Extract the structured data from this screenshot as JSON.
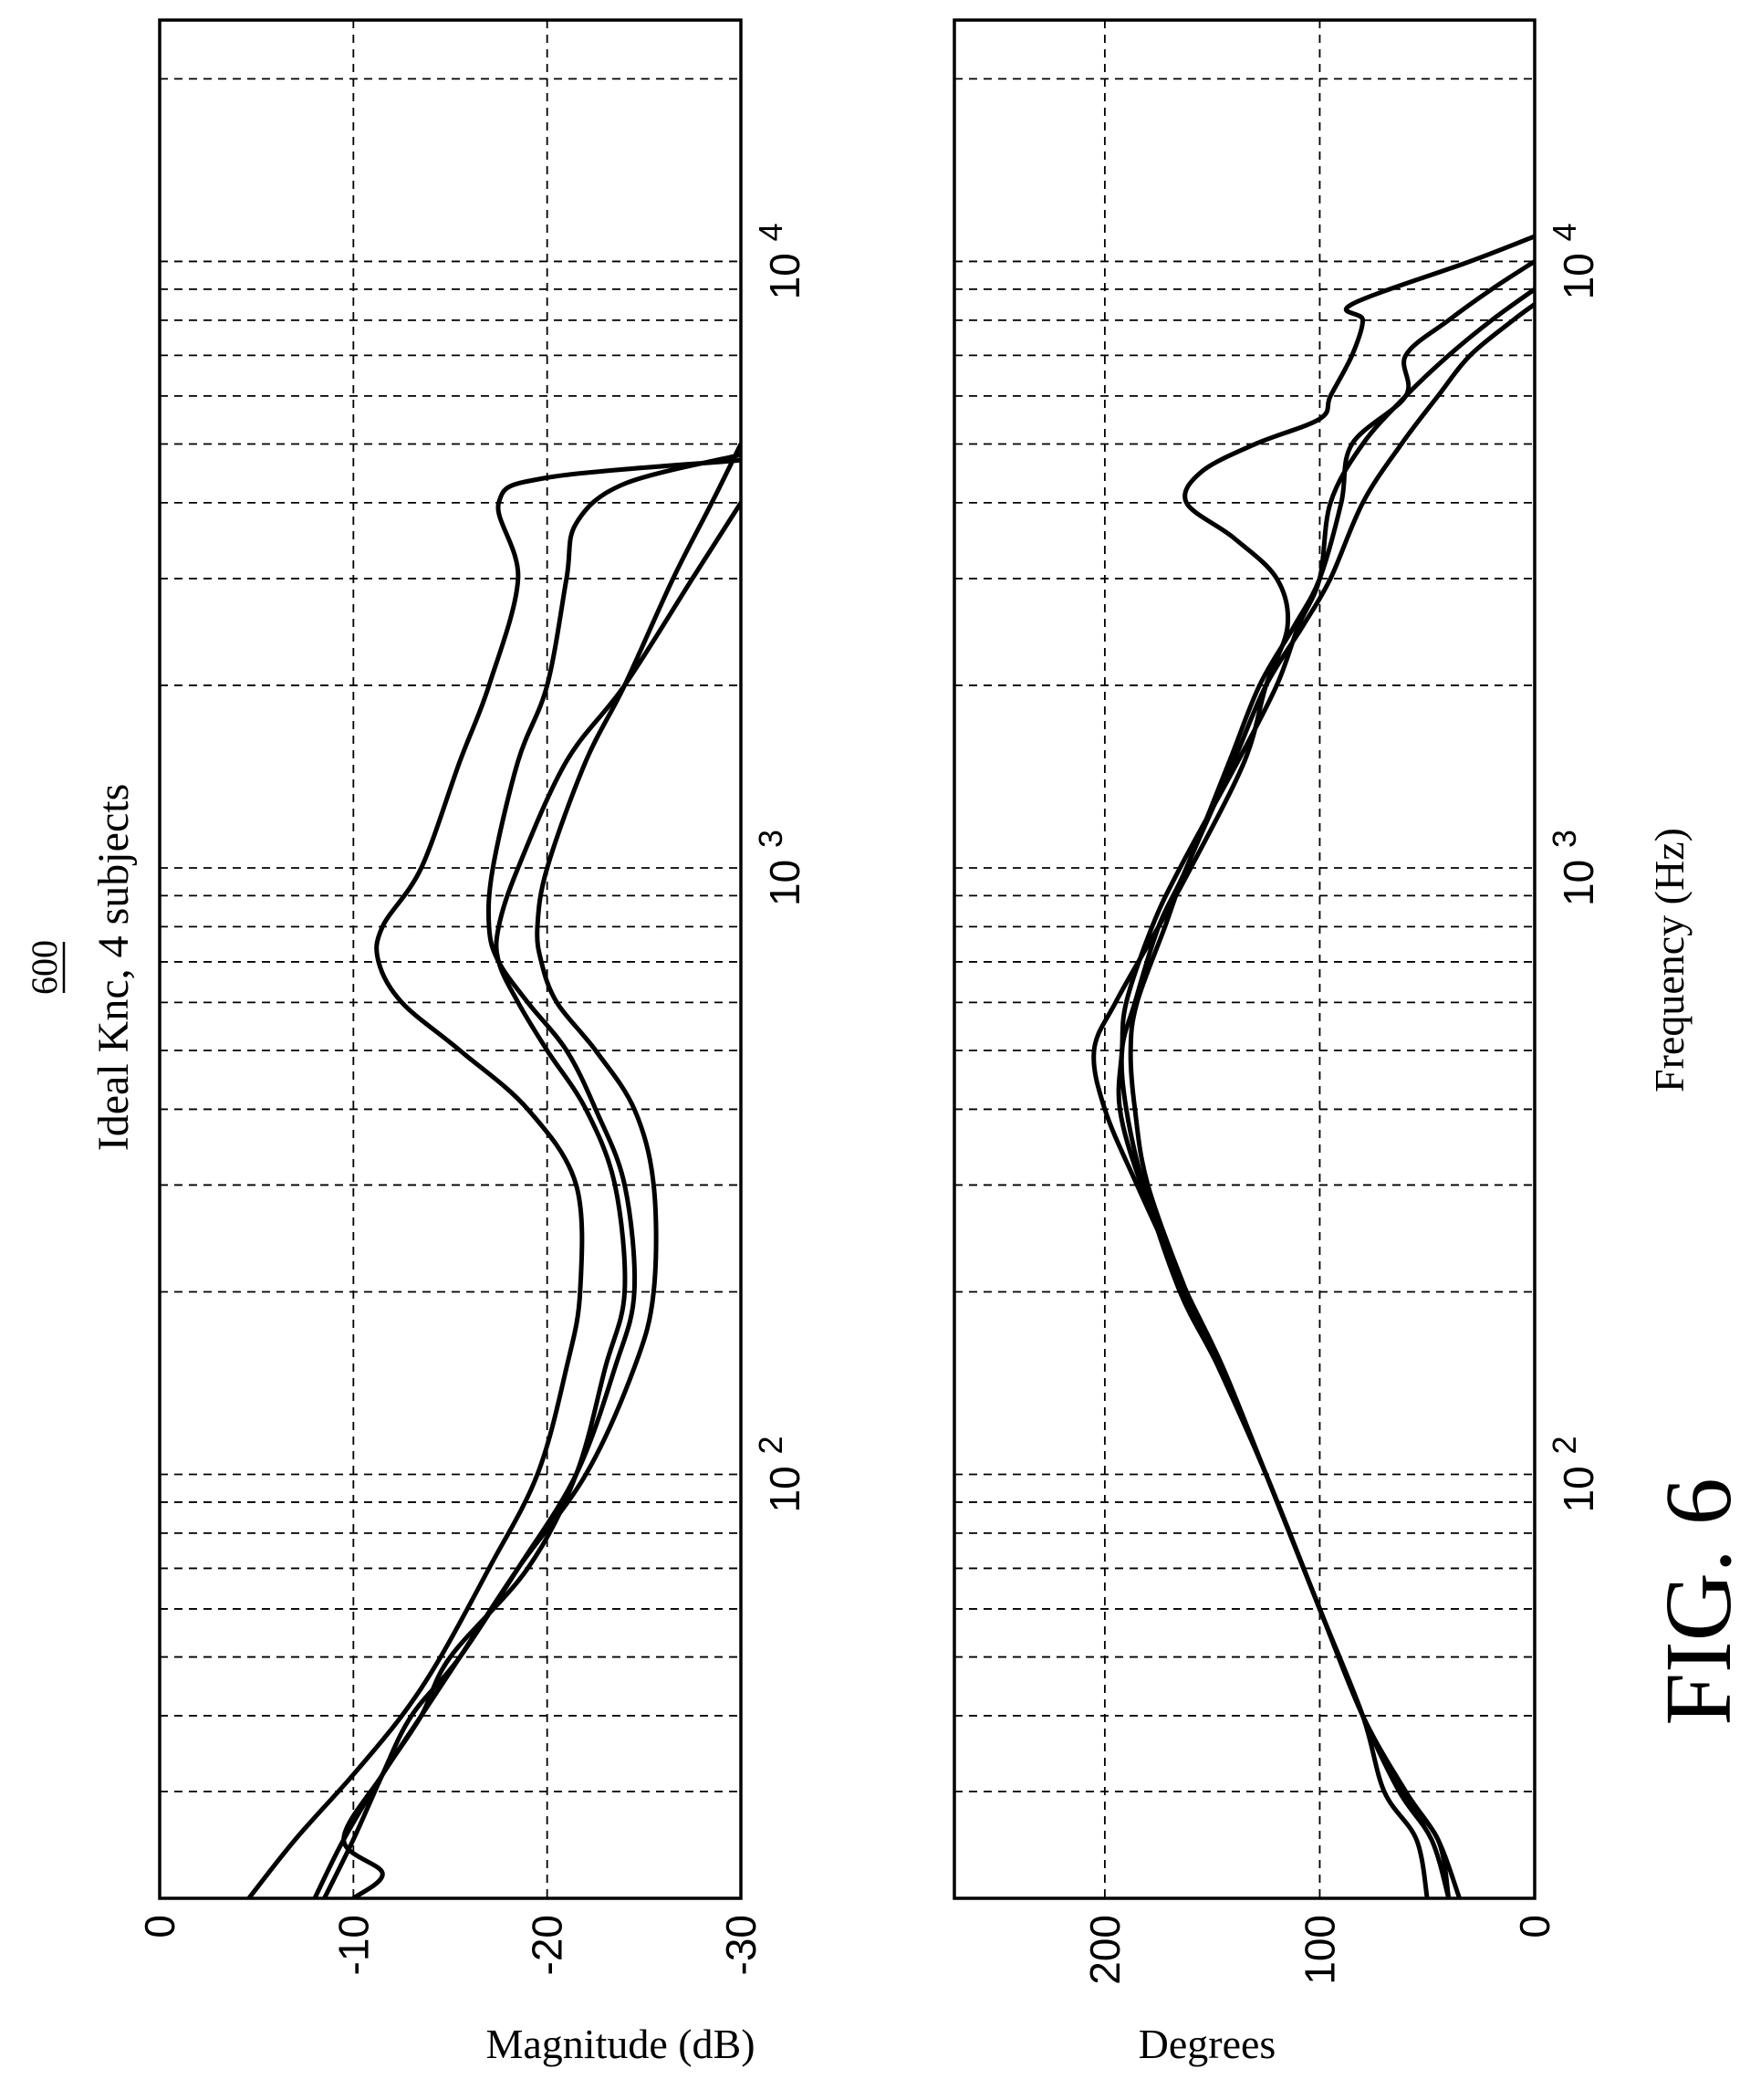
{
  "figure": {
    "reference_numeral": "600",
    "title": "Ideal Knc, 4 subjects",
    "caption": "FIG. 6"
  },
  "chart_data": [
    {
      "type": "line",
      "panel": "magnitude",
      "ylabel": "Magnitude (dB)",
      "xlabel": "",
      "xscale": "log",
      "xlim": [
        20,
        25000
      ],
      "ylim": [
        -30,
        0
      ],
      "grid": true,
      "x_ticks": [
        {
          "base": "10",
          "exp": "2",
          "value": 100
        },
        {
          "base": "10",
          "exp": "3",
          "value": 1000
        },
        {
          "base": "10",
          "exp": "4",
          "value": 10000
        }
      ],
      "y_ticks": [
        {
          "label": "0",
          "value": 0
        },
        {
          "label": "-10",
          "value": -10
        },
        {
          "label": "-20",
          "value": -20
        },
        {
          "label": "-30",
          "value": -30
        }
      ],
      "series": [
        {
          "points": [
            [
              20,
              -4.6
            ],
            [
              25,
              -7
            ],
            [
              32,
              -10
            ],
            [
              40,
              -12.5
            ],
            [
              50,
              -14.5
            ],
            [
              70,
              -17
            ],
            [
              100,
              -19.5
            ],
            [
              150,
              -21
            ],
            [
              200,
              -21.7
            ],
            [
              300,
              -21.5
            ],
            [
              400,
              -19
            ],
            [
              500,
              -15.5
            ],
            [
              600,
              -12.5
            ],
            [
              700,
              -11.3
            ],
            [
              800,
              -11.5
            ],
            [
              1000,
              -13.5
            ],
            [
              1500,
              -15.5
            ],
            [
              2000,
              -17
            ],
            [
              3000,
              -18.5
            ],
            [
              4000,
              -17.5
            ],
            [
              4400,
              -20
            ],
            [
              4700,
              -30
            ]
          ]
        },
        {
          "points": [
            [
              20,
              -8.5
            ],
            [
              25,
              -10
            ],
            [
              32,
              -11.5
            ],
            [
              40,
              -13
            ],
            [
              50,
              -15.5
            ],
            [
              70,
              -18.5
            ],
            [
              100,
              -21.5
            ],
            [
              150,
              -23.5
            ],
            [
              200,
              -24.5
            ],
            [
              300,
              -24
            ],
            [
              400,
              -22.5
            ],
            [
              500,
              -21
            ],
            [
              600,
              -19
            ],
            [
              700,
              -17.5
            ],
            [
              800,
              -17
            ],
            [
              1000,
              -17.2
            ],
            [
              1500,
              -18.5
            ],
            [
              2000,
              -20
            ],
            [
              3000,
              -21
            ],
            [
              3700,
              -21.5
            ],
            [
              4300,
              -24
            ],
            [
              4800,
              -30
            ]
          ]
        },
        {
          "points": [
            [
              20,
              -8
            ],
            [
              25,
              -9.5
            ],
            [
              32,
              -11.5
            ],
            [
              40,
              -13.5
            ],
            [
              50,
              -15.5
            ],
            [
              70,
              -18.5
            ],
            [
              100,
              -22
            ],
            [
              150,
              -24.5
            ],
            [
              200,
              -25.5
            ],
            [
              300,
              -25.5
            ],
            [
              400,
              -24.5
            ],
            [
              500,
              -22.5
            ],
            [
              600,
              -20.5
            ],
            [
              700,
              -19.7
            ],
            [
              800,
              -19.5
            ],
            [
              1000,
              -20
            ],
            [
              1500,
              -22
            ],
            [
              2000,
              -24
            ],
            [
              3000,
              -26.5
            ],
            [
              4000,
              -28.5
            ],
            [
              5000,
              -30
            ]
          ]
        },
        {
          "points": [
            [
              20,
              -10
            ],
            [
              22,
              -11.5
            ],
            [
              25,
              -9.5
            ],
            [
              32,
              -11.5
            ],
            [
              40,
              -13.5
            ],
            [
              50,
              -15
            ],
            [
              70,
              -19
            ],
            [
              100,
              -21.5
            ],
            [
              150,
              -23
            ],
            [
              200,
              -24
            ],
            [
              300,
              -23.5
            ],
            [
              400,
              -22
            ],
            [
              500,
              -20
            ],
            [
              600,
              -18.5
            ],
            [
              700,
              -17.5
            ],
            [
              800,
              -17.5
            ],
            [
              1000,
              -18.5
            ],
            [
              1500,
              -21
            ],
            [
              2000,
              -24
            ],
            [
              3000,
              -27.5
            ],
            [
              4000,
              -30
            ]
          ]
        }
      ]
    },
    {
      "type": "line",
      "panel": "phase",
      "ylabel": "Degrees",
      "xlabel": "Frequency (Hz)",
      "xscale": "log",
      "xlim": [
        20,
        25000
      ],
      "ylim": [
        0,
        270
      ],
      "grid": true,
      "x_ticks": [
        {
          "base": "10",
          "exp": "2",
          "value": 100
        },
        {
          "base": "10",
          "exp": "3",
          "value": 1000
        },
        {
          "base": "10",
          "exp": "4",
          "value": 10000
        }
      ],
      "y_ticks": [
        {
          "label": "0",
          "value": 0
        },
        {
          "label": "100",
          "value": 100
        },
        {
          "label": "200",
          "value": 200
        }
      ],
      "series": [
        {
          "points": [
            [
              20,
              50
            ],
            [
              25,
              55
            ],
            [
              30,
              70
            ],
            [
              40,
              80
            ],
            [
              60,
              100
            ],
            [
              100,
              125
            ],
            [
              150,
              145
            ],
            [
              200,
              162
            ],
            [
              300,
              185
            ],
            [
              400,
              200
            ],
            [
              500,
              205
            ],
            [
              600,
              195
            ],
            [
              800,
              175
            ],
            [
              1000,
              160
            ],
            [
              1500,
              135
            ],
            [
              2000,
              125
            ],
            [
              2500,
              115
            ],
            [
              3000,
              120
            ],
            [
              3500,
              140
            ],
            [
              4000,
              162
            ],
            [
              4500,
              155
            ],
            [
              5000,
              130
            ],
            [
              5500,
              100
            ],
            [
              6000,
              95
            ],
            [
              7000,
              85
            ],
            [
              8000,
              80
            ],
            [
              8500,
              85
            ],
            [
              10000,
              30
            ],
            [
              11000,
              0
            ]
          ]
        },
        {
          "points": [
            [
              20,
              35
            ],
            [
              25,
              45
            ],
            [
              30,
              60
            ],
            [
              40,
              80
            ],
            [
              60,
              100
            ],
            [
              100,
              125
            ],
            [
              150,
              147
            ],
            [
              200,
              163
            ],
            [
              300,
              183
            ],
            [
              400,
              193
            ],
            [
              500,
              192
            ],
            [
              600,
              190
            ],
            [
              800,
              178
            ],
            [
              1000,
              165
            ],
            [
              1500,
              138
            ],
            [
              2000,
              120
            ],
            [
              2500,
              110
            ],
            [
              3000,
              100
            ],
            [
              4000,
              95
            ],
            [
              5000,
              80
            ],
            [
              6000,
              60
            ],
            [
              7000,
              40
            ],
            [
              8000,
              20
            ],
            [
              9000,
              0
            ]
          ]
        },
        {
          "points": [
            [
              20,
              40
            ],
            [
              25,
              45
            ],
            [
              30,
              62
            ],
            [
              40,
              80
            ],
            [
              60,
              100
            ],
            [
              100,
              125
            ],
            [
              150,
              146
            ],
            [
              200,
              162
            ],
            [
              300,
              180
            ],
            [
              400,
              186
            ],
            [
              500,
              188
            ],
            [
              600,
              185
            ],
            [
              800,
              172
            ],
            [
              1000,
              162
            ],
            [
              1500,
              140
            ],
            [
              2000,
              125
            ],
            [
              2500,
              108
            ],
            [
              3000,
              95
            ],
            [
              4000,
              80
            ],
            [
              5000,
              62
            ],
            [
              6000,
              45
            ],
            [
              7000,
              30
            ],
            [
              8000,
              10
            ],
            [
              8500,
              0
            ]
          ]
        },
        {
          "points": [
            [
              20,
              40
            ],
            [
              25,
              48
            ],
            [
              30,
              63
            ],
            [
              40,
              80
            ],
            [
              60,
              100
            ],
            [
              100,
              125
            ],
            [
              150,
              147
            ],
            [
              200,
              165
            ],
            [
              300,
              182
            ],
            [
              400,
              190
            ],
            [
              500,
              192
            ],
            [
              600,
              186
            ],
            [
              800,
              175
            ],
            [
              1000,
              162
            ],
            [
              1500,
              142
            ],
            [
              2000,
              128
            ],
            [
              2500,
              112
            ],
            [
              3000,
              100
            ],
            [
              4000,
              90
            ],
            [
              5000,
              85
            ],
            [
              6000,
              60
            ],
            [
              7000,
              60
            ],
            [
              8000,
              40
            ],
            [
              9000,
              20
            ],
            [
              10000,
              0
            ]
          ]
        }
      ]
    }
  ]
}
